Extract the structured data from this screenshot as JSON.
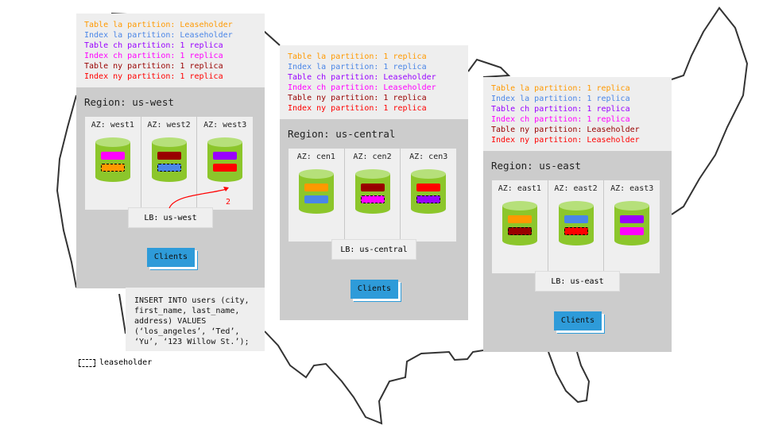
{
  "colors": {
    "la_table": "#ff9900",
    "la_index": "#4a86e8",
    "ch_table": "#9900ff",
    "ch_index": "#ff00ff",
    "ny_table": "#990000",
    "ny_index": "#ff0000",
    "disk": "#8cc62b",
    "clients": "#2e9bd9"
  },
  "regions": [
    {
      "id": "west",
      "title": "Region: us-west",
      "legend": [
        {
          "text": "Table la partition: Leaseholder",
          "color": "#ff9900"
        },
        {
          "text": "Index la partition: Leaseholder",
          "color": "#4a86e8"
        },
        {
          "text": "Table ch partition: 1 replica",
          "color": "#9900ff"
        },
        {
          "text": "Index ch partition: 1 replica",
          "color": "#ff00ff"
        },
        {
          "text": "Table ny partition: 1 replica",
          "color": "#990000"
        },
        {
          "text": "Index ny partition: 1 replica",
          "color": "#ff0000"
        }
      ],
      "azs": [
        {
          "label": "AZ: west1",
          "blocks": [
            {
              "color": "#ff00ff",
              "leaseholder": false
            },
            {
              "color": "#ff9900",
              "leaseholder": true
            }
          ]
        },
        {
          "label": "AZ: west2",
          "blocks": [
            {
              "color": "#990000",
              "leaseholder": false
            },
            {
              "color": "#4a86e8",
              "leaseholder": true
            }
          ]
        },
        {
          "label": "AZ: west3",
          "blocks": [
            {
              "color": "#9900ff",
              "leaseholder": false
            },
            {
              "color": "#ff0000",
              "leaseholder": false
            }
          ]
        }
      ],
      "lb": "LB: us-west",
      "clients": "Clients"
    },
    {
      "id": "central",
      "title": "Region: us-central",
      "legend": [
        {
          "text": "Table la partition: 1 replica",
          "color": "#ff9900"
        },
        {
          "text": "Index la partition: 1 replica",
          "color": "#4a86e8"
        },
        {
          "text": "Table ch partition: Leaseholder",
          "color": "#9900ff"
        },
        {
          "text": "Index ch partition: Leaseholder",
          "color": "#ff00ff"
        },
        {
          "text": "Table ny partition: 1 replica",
          "color": "#990000"
        },
        {
          "text": "Index ny partition: 1 replica",
          "color": "#ff0000"
        }
      ],
      "azs": [
        {
          "label": "AZ: cen1",
          "blocks": [
            {
              "color": "#ff9900",
              "leaseholder": false
            },
            {
              "color": "#4a86e8",
              "leaseholder": false
            }
          ]
        },
        {
          "label": "AZ: cen2",
          "blocks": [
            {
              "color": "#990000",
              "leaseholder": false
            },
            {
              "color": "#ff00ff",
              "leaseholder": true
            }
          ]
        },
        {
          "label": "AZ: cen3",
          "blocks": [
            {
              "color": "#ff0000",
              "leaseholder": false
            },
            {
              "color": "#9900ff",
              "leaseholder": true
            }
          ]
        }
      ],
      "lb": "LB: us-central",
      "clients": "Clients"
    },
    {
      "id": "east",
      "title": "Region: us-east",
      "legend": [
        {
          "text": "Table la partition: 1 replica",
          "color": "#ff9900"
        },
        {
          "text": "Index la partition: 1 replica",
          "color": "#4a86e8"
        },
        {
          "text": "Table ch partition: 1 replica",
          "color": "#9900ff"
        },
        {
          "text": "Index ch partition: 1 replica",
          "color": "#ff00ff"
        },
        {
          "text": "Table ny partition: Leaseholder",
          "color": "#990000"
        },
        {
          "text": "Index ny partition: Leaseholder",
          "color": "#ff0000"
        }
      ],
      "azs": [
        {
          "label": "AZ: east1",
          "blocks": [
            {
              "color": "#ff9900",
              "leaseholder": false
            },
            {
              "color": "#990000",
              "leaseholder": true
            }
          ]
        },
        {
          "label": "AZ: east2",
          "blocks": [
            {
              "color": "#4a86e8",
              "leaseholder": false
            },
            {
              "color": "#ff0000",
              "leaseholder": true
            }
          ]
        },
        {
          "label": "AZ: east3",
          "blocks": [
            {
              "color": "#9900ff",
              "leaseholder": false
            },
            {
              "color": "#ff00ff",
              "leaseholder": false
            }
          ]
        }
      ],
      "lb": "LB: us-east",
      "clients": "Clients"
    }
  ],
  "arrow_label": "2",
  "insert_statement": "INSERT INTO users (city,\nfirst_name, last_name,\naddress) VALUES\n(‘los_angeles’, ‘Ted’,\n‘Yu’, ‘123 Willow St.’);",
  "key": {
    "leaseholder": "leaseholder"
  }
}
